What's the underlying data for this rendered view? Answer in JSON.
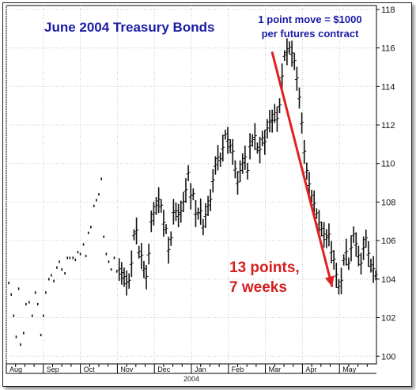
{
  "chart_data": {
    "type": "ohlc",
    "title": "June 2004 Treasury Bonds",
    "note_lines": [
      "1 point move = $1000",
      "per futures contract"
    ],
    "callout_lines": [
      "13 points,",
      "7 weeks"
    ],
    "year_label": "2004",
    "y_ticks": [
      100,
      102,
      104,
      106,
      108,
      110,
      112,
      114,
      116,
      118
    ],
    "ylim": [
      99.6,
      118.2
    ],
    "months": [
      "Aug",
      "Sep",
      "Oct",
      "Nov",
      "Dec",
      "Jan",
      "Feb",
      "Mar",
      "Apr",
      "May"
    ],
    "grid": true,
    "trend_arrow": {
      "from_value": 115.8,
      "to_value": 103.6,
      "color": "#e02020"
    },
    "series": [
      {
        "values": [
          [
            0.4,
            103.8
          ],
          [
            0.8,
            103.2
          ],
          [
            1.2,
            102.1
          ],
          [
            1.6,
            101.0
          ],
          [
            2.0,
            103.5
          ],
          [
            2.3,
            100.6
          ],
          [
            2.8,
            101.2
          ],
          [
            3.2,
            102.7
          ],
          [
            3.7,
            102.8
          ],
          [
            4.2,
            102.1
          ],
          [
            4.7,
            103.3
          ],
          [
            5.1,
            102.7
          ],
          [
            5.6,
            101.1
          ],
          [
            6.0,
            102.1
          ],
          [
            6.4,
            103.3
          ],
          [
            6.9,
            104.0
          ],
          [
            7.3,
            104.2
          ],
          [
            7.7,
            103.9
          ],
          [
            8.2,
            104.6
          ],
          [
            8.6,
            104.9
          ],
          [
            9.0,
            104.5
          ],
          [
            9.5,
            104.3
          ],
          [
            9.9,
            105.1
          ],
          [
            10.3,
            105.1
          ],
          [
            10.8,
            105.1
          ],
          [
            11.2,
            105.0
          ],
          [
            11.6,
            105.4
          ],
          [
            12.0,
            105.3
          ],
          [
            12.5,
            105.8
          ],
          [
            12.9,
            105.2
          ],
          [
            13.3,
            106.4
          ],
          [
            13.7,
            106.7
          ],
          [
            14.2,
            107.8
          ],
          [
            14.6,
            108.1
          ],
          [
            15.0,
            108.4
          ],
          [
            15.4,
            109.2
          ],
          [
            15.8,
            106.2
          ],
          [
            16.2,
            105.3
          ],
          [
            16.6,
            104.9
          ],
          [
            17.0,
            104.5
          ],
          [
            17.5,
            105.1
          ],
          [
            17.9,
            104.4
          ],
          [
            18.3,
            104.5
          ],
          [
            18.7,
            104.3
          ],
          [
            19.1,
            104.1
          ],
          [
            19.5,
            103.8
          ],
          [
            19.9,
            103.9
          ],
          [
            20.3,
            104.8
          ],
          [
            20.7,
            106.3
          ],
          [
            21.1,
            106.5
          ],
          [
            21.5,
            105.4
          ],
          [
            21.9,
            105.2
          ],
          [
            22.3,
            104.5
          ],
          [
            22.7,
            104.1
          ],
          [
            23.1,
            105.3
          ],
          [
            23.5,
            107.0
          ],
          [
            23.9,
            107.4
          ],
          [
            24.3,
            107.8
          ],
          [
            24.7,
            108.1
          ],
          [
            25.1,
            107.8
          ],
          [
            25.5,
            106.9
          ],
          [
            25.9,
            106.6
          ],
          [
            26.3,
            105.5
          ],
          [
            26.7,
            106.1
          ],
          [
            27.1,
            107.5
          ],
          [
            27.5,
            107.5
          ],
          [
            27.9,
            107.3
          ],
          [
            28.3,
            107.5
          ],
          [
            28.7,
            108.0
          ],
          [
            29.1,
            108.6
          ],
          [
            29.5,
            109.5
          ],
          [
            29.9,
            108.3
          ],
          [
            30.3,
            108.4
          ],
          [
            30.7,
            107.4
          ],
          [
            31.1,
            107.4
          ],
          [
            31.5,
            107.5
          ],
          [
            31.9,
            106.7
          ],
          [
            32.3,
            107.3
          ],
          [
            32.7,
            107.8
          ],
          [
            33.1,
            108.1
          ],
          [
            33.5,
            109.1
          ],
          [
            33.9,
            109.9
          ],
          [
            34.3,
            110.3
          ],
          [
            34.7,
            110.2
          ],
          [
            35.1,
            110.8
          ],
          [
            35.5,
            111.5
          ],
          [
            35.9,
            111.2
          ],
          [
            36.3,
            110.9
          ],
          [
            36.7,
            110.6
          ],
          [
            37.1,
            109.7
          ],
          [
            37.5,
            109.0
          ],
          [
            37.9,
            109.6
          ],
          [
            38.3,
            110.0
          ],
          [
            38.7,
            110.3
          ],
          [
            39.1,
            109.6
          ],
          [
            39.5,
            110.9
          ],
          [
            39.9,
            111.2
          ],
          [
            40.3,
            111.4
          ],
          [
            40.7,
            110.8
          ],
          [
            41.1,
            110.7
          ],
          [
            41.5,
            111.3
          ],
          [
            41.9,
            111.1
          ],
          [
            42.3,
            111.8
          ],
          [
            42.7,
            112.2
          ],
          [
            43.1,
            112.2
          ],
          [
            43.5,
            112.6
          ],
          [
            43.9,
            112.3
          ],
          [
            44.3,
            113.0
          ],
          [
            44.7,
            114.5
          ],
          [
            45.1,
            115.6
          ],
          [
            45.5,
            115.8
          ],
          [
            45.9,
            116.0
          ],
          [
            46.3,
            115.7
          ],
          [
            46.7,
            115.3
          ],
          [
            47.1,
            114.4
          ],
          [
            47.5,
            113.4
          ],
          [
            47.9,
            112.1
          ],
          [
            48.3,
            110.6
          ],
          [
            48.7,
            109.6
          ],
          [
            49.1,
            108.9
          ],
          [
            49.5,
            108.3
          ],
          [
            49.9,
            107.9
          ],
          [
            50.3,
            107.4
          ],
          [
            50.7,
            106.9
          ],
          [
            51.1,
            106.6
          ],
          [
            51.5,
            106.3
          ],
          [
            51.9,
            106.1
          ],
          [
            52.3,
            106.3
          ],
          [
            52.7,
            105.4
          ],
          [
            53.1,
            105.0
          ],
          [
            53.5,
            104.2
          ],
          [
            53.9,
            103.6
          ],
          [
            54.3,
            103.9
          ],
          [
            54.7,
            105.0
          ],
          [
            55.1,
            105.4
          ],
          [
            55.5,
            104.8
          ],
          [
            55.9,
            105.6
          ],
          [
            56.3,
            106.3
          ],
          [
            56.7,
            105.8
          ],
          [
            57.1,
            105.2
          ],
          [
            57.5,
            104.8
          ],
          [
            57.9,
            105.6
          ],
          [
            58.3,
            106.1
          ],
          [
            58.7,
            105.3
          ],
          [
            59.1,
            104.7
          ],
          [
            59.5,
            104.5
          ],
          [
            59.9,
            104.2
          ]
        ]
      }
    ]
  }
}
